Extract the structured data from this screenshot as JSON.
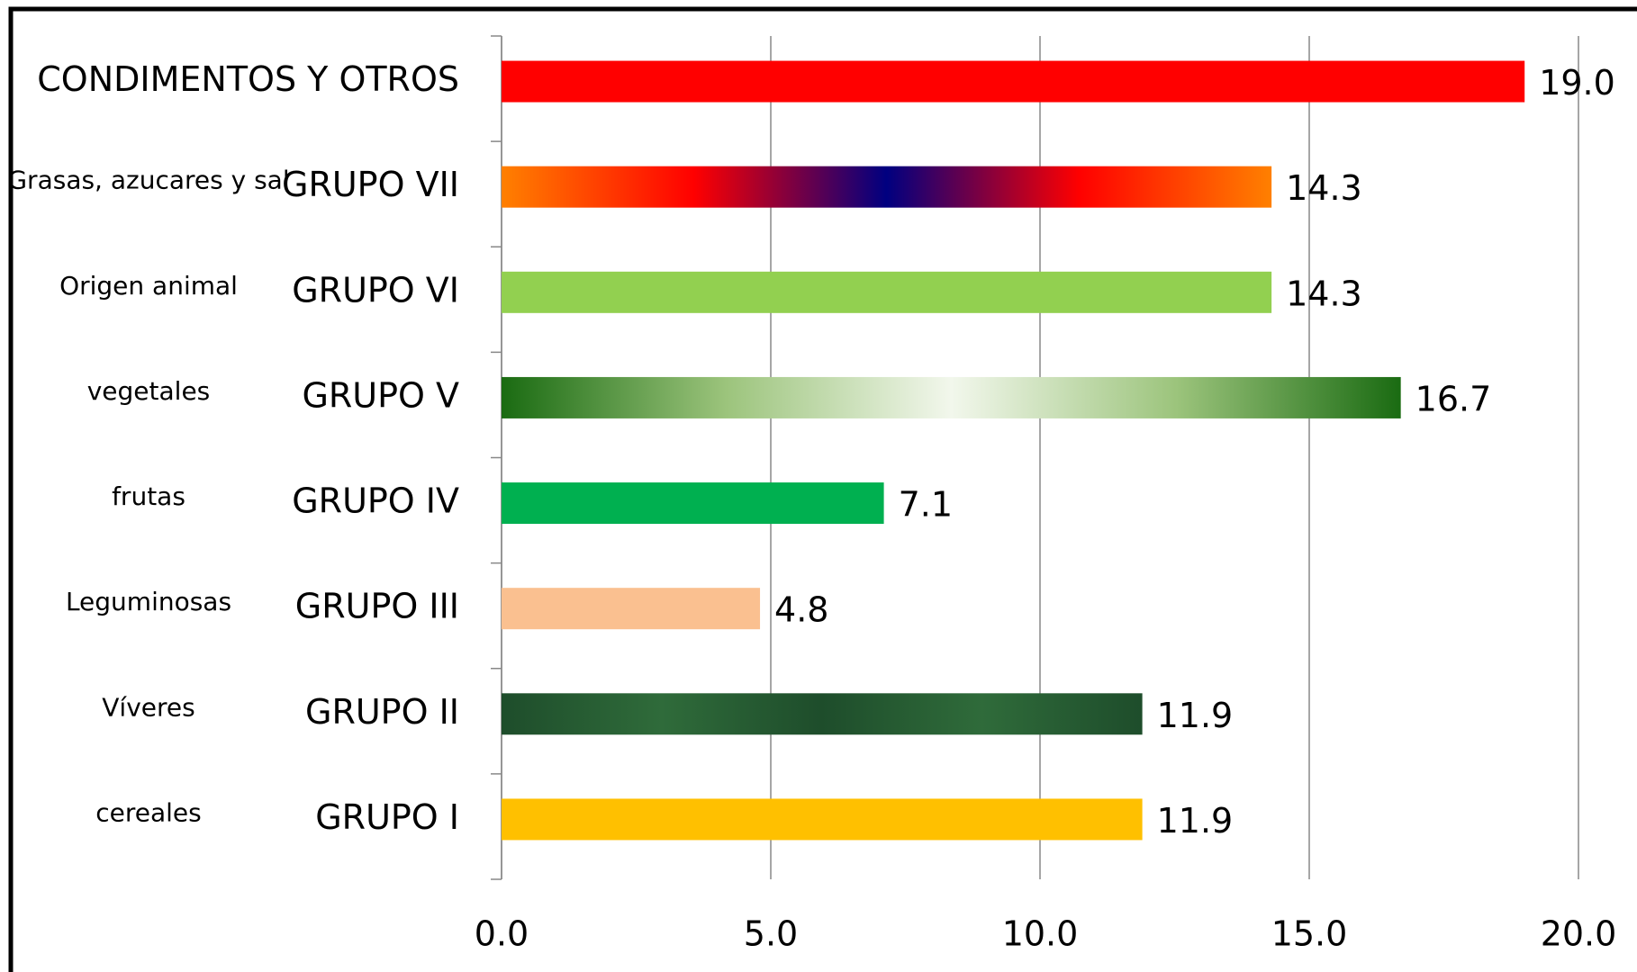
{
  "chart_data": {
    "type": "bar",
    "orientation": "horizontal",
    "categories": [
      "CONDIMENTOS Y OTROS",
      "GRUPO VII",
      "GRUPO VI",
      "GRUPO V",
      "GRUPO IV",
      "GRUPO III",
      "GRUPO II",
      "GRUPO I"
    ],
    "descriptions": [
      null,
      "Grasas, azucares y sal",
      "Origen animal",
      "vegetales",
      "frutas",
      "Leguminosas",
      "Víveres",
      "cereales"
    ],
    "values": [
      19.0,
      14.3,
      14.3,
      16.7,
      7.1,
      4.8,
      11.9,
      11.9
    ],
    "value_labels": [
      "19.0",
      "14.3",
      "14.3",
      "16.7",
      "7.1",
      "4.8",
      "11.9",
      "11.9"
    ],
    "colors": [
      "#ff0000",
      [
        "#ff8000",
        "#ff0000",
        "#000080"
      ],
      "#92d050",
      [
        "#1a6b12",
        "#9cc47c",
        "#f2f7ec"
      ],
      "#00b050",
      "#fac090",
      [
        "#1e4d2b",
        "#2f6b3a",
        "#1e4d2b"
      ],
      "#ffc000"
    ],
    "xlim": [
      0,
      20
    ],
    "xticks": [
      {
        "value": 0,
        "label": "0.0"
      },
      {
        "value": 5,
        "label": "5.0"
      },
      {
        "value": 10,
        "label": "10.0"
      },
      {
        "value": 15,
        "label": "15.0"
      },
      {
        "value": 20,
        "label": "20.0"
      }
    ],
    "grid": true
  }
}
